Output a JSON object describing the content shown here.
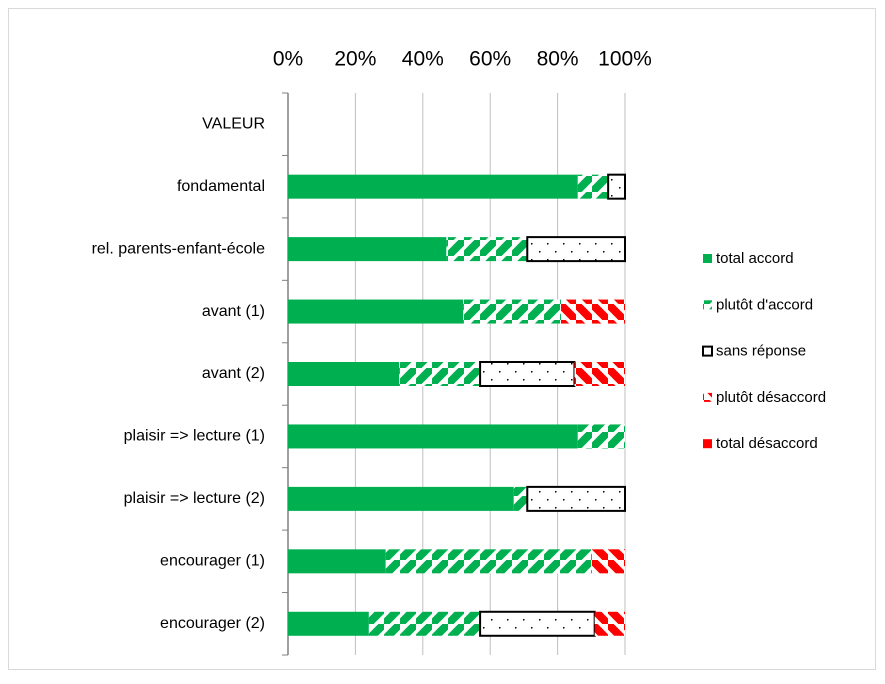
{
  "chart_data": {
    "type": "stacked-bar-horizontal",
    "categories": [
      "VALEUR",
      "fondamental",
      "rel. parents-enfant-école",
      "avant (1)",
      "avant (2)",
      "plaisir => lecture (1)",
      "plaisir => lecture (2)",
      "encourager (1)",
      "encourager (2)"
    ],
    "series": [
      {
        "name": "total accord",
        "color": "#00b050",
        "pattern": "solid",
        "values": [
          null,
          86,
          47,
          52,
          33,
          86,
          67,
          29,
          24
        ]
      },
      {
        "name": "plutôt d'accord",
        "color": "#00b050",
        "pattern": "hatch",
        "values": [
          null,
          9,
          24,
          29,
          24,
          14,
          4,
          61,
          33
        ]
      },
      {
        "name": "sans réponse",
        "color": "#000000",
        "pattern": "dots",
        "values": [
          null,
          5,
          29,
          0,
          28,
          0,
          29,
          0,
          34
        ]
      },
      {
        "name": "plutôt désaccord",
        "color": "#ff0000",
        "pattern": "backhatch",
        "values": [
          null,
          0,
          0,
          19,
          15,
          0,
          0,
          10,
          9
        ]
      },
      {
        "name": "total désaccord",
        "color": "#ff0000",
        "pattern": "solid",
        "values": [
          null,
          0,
          0,
          0,
          0,
          0,
          0,
          0,
          0
        ]
      }
    ],
    "xlim": [
      0,
      100
    ],
    "xticks": [
      {
        "value": 0,
        "label": "0%"
      },
      {
        "value": 20,
        "label": "20%"
      },
      {
        "value": 40,
        "label": "40%"
      },
      {
        "value": 60,
        "label": "60%"
      },
      {
        "value": 80,
        "label": "80%"
      },
      {
        "value": 100,
        "label": "100%"
      }
    ],
    "grid": true,
    "legend": "right"
  }
}
